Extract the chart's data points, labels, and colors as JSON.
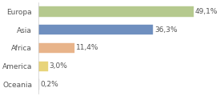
{
  "categories": [
    "Europa",
    "Asia",
    "Africa",
    "America",
    "Oceania"
  ],
  "values": [
    49.1,
    36.3,
    11.4,
    3.0,
    0.2
  ],
  "labels": [
    "49,1%",
    "36,3%",
    "11,4%",
    "3,0%",
    "0,2%"
  ],
  "bar_colors": [
    "#b5c98e",
    "#6f8fbf",
    "#e8b48a",
    "#e8d47a",
    "#ffffff"
  ],
  "bar_edge_colors": [
    "#b5c98e",
    "#6f8fbf",
    "#e8b48a",
    "#e8d47a",
    "#cccccc"
  ],
  "background_color": "#ffffff",
  "xlim_max": 58,
  "bar_height": 0.55,
  "label_fontsize": 6.5,
  "tick_fontsize": 6.5,
  "text_color": "#555555"
}
